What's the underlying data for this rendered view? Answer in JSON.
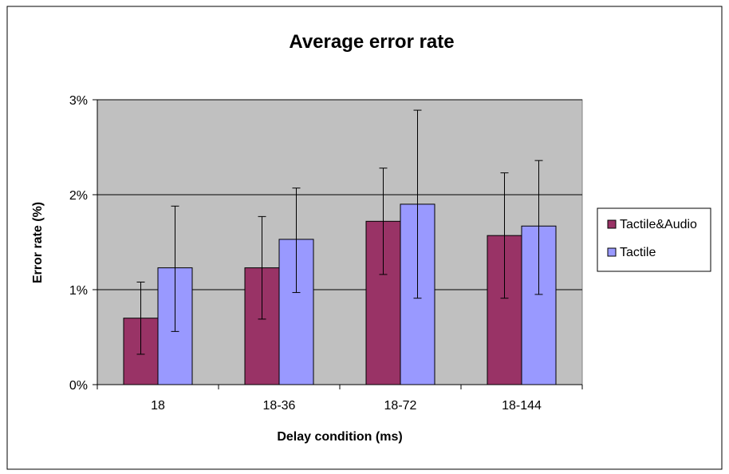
{
  "chart_data": {
    "type": "bar",
    "title": "Average error rate",
    "xlabel": "Delay condition (ms)",
    "ylabel": "Error rate (%)",
    "categories": [
      "18",
      "18-36",
      "18-72",
      "18-144"
    ],
    "yticks": [
      "0%",
      "1%",
      "2%",
      "3%"
    ],
    "ylim": [
      0,
      3
    ],
    "grid": true,
    "legend_position": "right",
    "series": [
      {
        "name": "Tactile&Audio",
        "color": "#993366",
        "values": [
          0.7,
          1.23,
          1.72,
          1.57
        ],
        "error_low": [
          0.32,
          0.69,
          1.16,
          0.91
        ],
        "error_high": [
          1.08,
          1.77,
          2.28,
          2.23
        ]
      },
      {
        "name": "Tactile",
        "color": "#9999ff",
        "values": [
          1.23,
          1.53,
          1.9,
          1.67
        ],
        "error_low": [
          0.56,
          0.97,
          0.91,
          0.95
        ],
        "error_high": [
          1.88,
          2.07,
          2.89,
          2.36
        ]
      }
    ],
    "plot_background": "#c0c0c0"
  }
}
